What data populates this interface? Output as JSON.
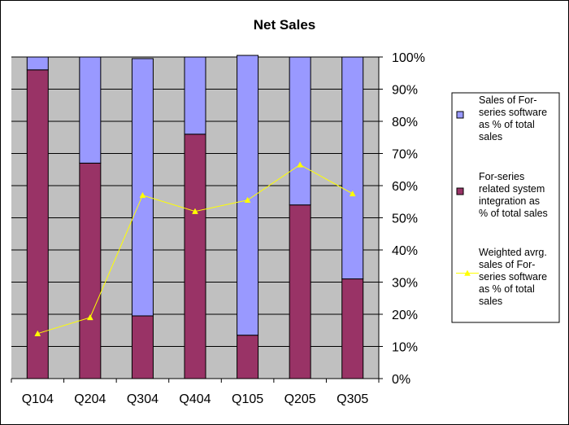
{
  "chart_data": {
    "type": "bar",
    "title": "Net Sales",
    "categories": [
      "Q104",
      "Q204",
      "Q304",
      "Q404",
      "Q105",
      "Q205",
      "Q305"
    ],
    "series": [
      {
        "name": "Sales of For-series software as % of total sales",
        "kind": "stacked-bar-top",
        "color": "#9999ff",
        "values": [
          4,
          33,
          80,
          24,
          87,
          46,
          69
        ]
      },
      {
        "name": "For-series related system integration as % of total sales",
        "kind": "stacked-bar-bottom",
        "color": "#993366",
        "values": [
          96,
          67,
          19.5,
          76,
          13.5,
          54,
          31
        ]
      },
      {
        "name": "Weighted avrg. sales of For-series software as % of total sales",
        "kind": "line",
        "color": "#ffff00",
        "values": [
          14,
          19,
          57,
          52,
          55.5,
          66.5,
          57.5
        ]
      }
    ],
    "yticks": [
      "0%",
      "10%",
      "20%",
      "30%",
      "40%",
      "50%",
      "60%",
      "70%",
      "80%",
      "90%",
      "100%"
    ],
    "ylim": [
      0,
      100
    ],
    "y_axis_side": "right",
    "grid": true,
    "plot_background": "#c0c0c0",
    "legend_position": "right",
    "legend_lines": [
      [
        "Sales of For-",
        "series software",
        "as % of total",
        "sales"
      ],
      [
        "For-series",
        "related system",
        "integration as",
        "% of total sales"
      ],
      [
        "Weighted avrg.",
        "sales of For-",
        "series software",
        "as % of total",
        "sales"
      ]
    ]
  }
}
